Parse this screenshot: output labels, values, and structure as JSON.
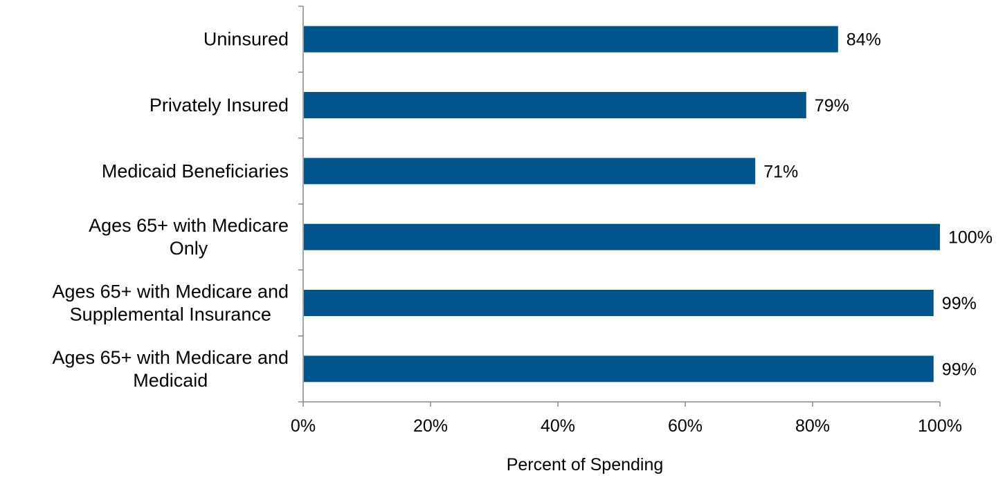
{
  "chart_data": {
    "type": "bar",
    "orientation": "horizontal",
    "categories": [
      "Uninsured",
      "Privately Insured",
      "Medicaid Beneficiaries",
      "Ages 65+ with Medicare Only",
      "Ages 65+ with Medicare and Supplemental Insurance",
      "Ages 65+ with Medicare and Medicaid"
    ],
    "category_lines": [
      [
        "Uninsured"
      ],
      [
        "Privately Insured"
      ],
      [
        "Medicaid Beneficiaries"
      ],
      [
        "Ages 65+ with Medicare",
        "Only"
      ],
      [
        "Ages 65+ with Medicare and",
        "Supplemental Insurance"
      ],
      [
        "Ages 65+ with Medicare and",
        "Medicaid"
      ]
    ],
    "values": [
      84,
      79,
      71,
      100,
      99,
      99
    ],
    "value_labels": [
      "84%",
      "79%",
      "71%",
      "100%",
      "99%",
      "99%"
    ],
    "xlabel": "Percent of Spending",
    "ylabel": "",
    "title": "",
    "xlim": [
      0,
      100
    ],
    "xticks": [
      0,
      20,
      40,
      60,
      80,
      100
    ],
    "xtick_labels": [
      "0%",
      "20%",
      "40%",
      "60%",
      "80%",
      "100%"
    ],
    "grid": false,
    "colors": {
      "bar": "#00558C",
      "axis": "#888888"
    }
  }
}
